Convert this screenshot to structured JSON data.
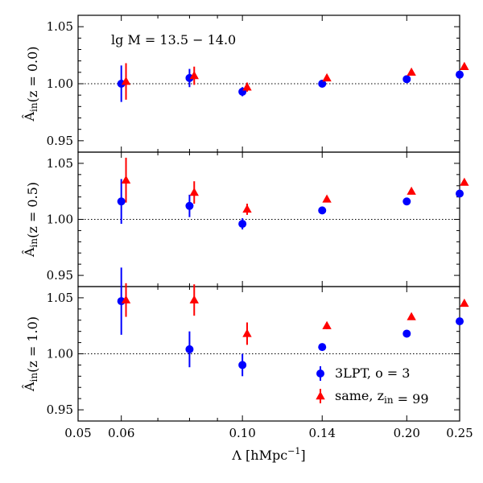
{
  "chart_data": {
    "type": "scatter",
    "x_axis": {
      "label": "Λ [hMpc⁻¹]",
      "scale": "log",
      "xlim": [
        0.05,
        0.25
      ],
      "ticks": [
        0.05,
        0.06,
        0.1,
        0.14,
        0.2,
        0.25
      ],
      "tick_labels": [
        "0.05",
        "0.06",
        "0.10",
        "0.14",
        "0.20",
        "0.25"
      ]
    },
    "legend": {
      "placement": "lower-right (bottom panel)",
      "entries": [
        {
          "series": "3LPT",
          "label": "3LPT, o = 3",
          "marker": "circle",
          "color": "#0000ff"
        },
        {
          "series": "same",
          "label": "same, z_in = 99",
          "marker": "triangle",
          "color": "#ff0000"
        }
      ]
    },
    "panels": [
      {
        "ylabel": "Â_in(z = 0.0)",
        "annotation": "lg M = 13.5 − 14.0",
        "ylim": [
          0.94,
          1.06
        ],
        "yticks": [
          0.95,
          1.0,
          1.05
        ],
        "ytick_labels": [
          "0.95",
          "1.00",
          "1.05"
        ],
        "reference_line": 1.0,
        "series": [
          {
            "name": "3LPT",
            "color": "#0000ff",
            "marker": "circle",
            "x": [
              0.06,
              0.08,
              0.1,
              0.14,
              0.2,
              0.25
            ],
            "y": [
              1.0,
              1.005,
              0.993,
              1.0,
              1.004,
              1.008
            ],
            "err": [
              0.016,
              0.008,
              0.004,
              0.002,
              0.002,
              0.002
            ]
          },
          {
            "name": "same",
            "color": "#ff0000",
            "marker": "triangle",
            "x": [
              0.0612,
              0.0816,
              0.102,
              0.1428,
              0.204,
              0.255
            ],
            "y": [
              1.002,
              1.007,
              0.997,
              1.005,
              1.01,
              1.015
            ],
            "err": [
              0.016,
              0.008,
              0.004,
              0.002,
              0.002,
              0.002
            ]
          }
        ]
      },
      {
        "ylabel": "Â_in(z = 0.5)",
        "annotation": "",
        "ylim": [
          0.94,
          1.06
        ],
        "yticks": [
          0.95,
          1.0,
          1.05
        ],
        "ytick_labels": [
          "0.95",
          "1.00",
          "1.05"
        ],
        "reference_line": 1.0,
        "series": [
          {
            "name": "3LPT",
            "color": "#0000ff",
            "marker": "circle",
            "x": [
              0.06,
              0.08,
              0.1,
              0.14,
              0.2,
              0.25
            ],
            "y": [
              1.016,
              1.012,
              0.996,
              1.008,
              1.016,
              1.023
            ],
            "err": [
              0.02,
              0.01,
              0.005,
              0.002,
              0.002,
              0.002
            ]
          },
          {
            "name": "same",
            "color": "#ff0000",
            "marker": "triangle",
            "x": [
              0.0612,
              0.0816,
              0.102,
              0.1428,
              0.204,
              0.255
            ],
            "y": [
              1.035,
              1.024,
              1.009,
              1.018,
              1.025,
              1.033
            ],
            "err": [
              0.02,
              0.01,
              0.005,
              0.002,
              0.002,
              0.002
            ]
          }
        ]
      },
      {
        "ylabel": "Â_in(z = 1.0)",
        "annotation": "",
        "ylim": [
          0.94,
          1.06
        ],
        "yticks": [
          0.95,
          1.0,
          1.05
        ],
        "ytick_labels": [
          "0.95",
          "1.00",
          "1.05"
        ],
        "reference_line": 1.0,
        "series": [
          {
            "name": "3LPT",
            "color": "#0000ff",
            "marker": "circle",
            "x": [
              0.06,
              0.08,
              0.1,
              0.14,
              0.2,
              0.25
            ],
            "y": [
              1.047,
              1.004,
              0.99,
              1.006,
              1.018,
              1.029
            ],
            "err": [
              0.03,
              0.016,
              0.01,
              0.003,
              0.002,
              0.002
            ]
          },
          {
            "name": "same",
            "color": "#ff0000",
            "marker": "triangle",
            "x": [
              0.0612,
              0.0816,
              0.102,
              0.1428,
              0.204,
              0.255
            ],
            "y": [
              1.048,
              1.048,
              1.018,
              1.025,
              1.033,
              1.045
            ],
            "err": [
              0.015,
              0.014,
              0.01,
              0.003,
              0.002,
              0.002
            ]
          }
        ]
      }
    ]
  }
}
